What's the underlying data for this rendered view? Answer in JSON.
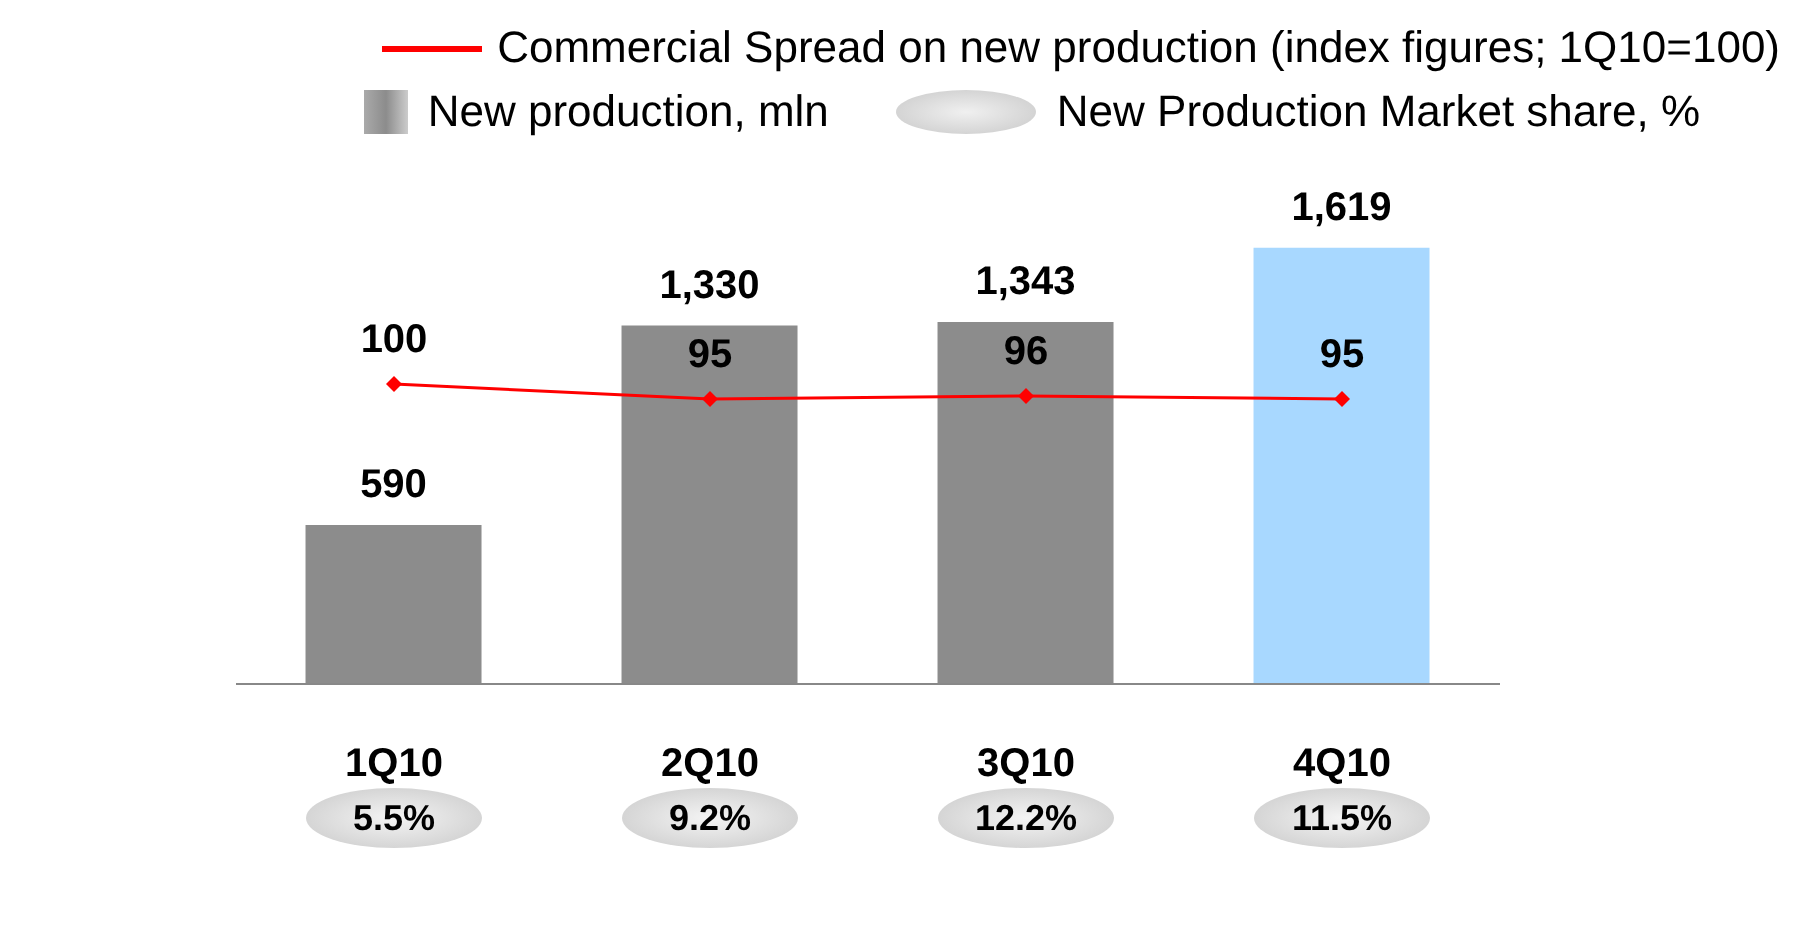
{
  "chart_data": {
    "type": "bar",
    "categories": [
      "1Q10",
      "2Q10",
      "3Q10",
      "4Q10"
    ],
    "series": [
      {
        "name": "Commercial Spread on new production (index figures; 1Q10=100)",
        "type": "line",
        "axis": "y2",
        "color": "#ff0000",
        "values": [
          100,
          95,
          96,
          95
        ]
      },
      {
        "name": "New production, mln",
        "color": "#8c8c8c",
        "colors": [
          "#8c8c8c",
          "#8c8c8c",
          "#8c8c8c",
          "#a8d8ff"
        ],
        "values": [
          590,
          1330,
          1343,
          1619
        ],
        "value_labels": [
          "590",
          "1,330",
          "1,343",
          "1,619"
        ]
      }
    ],
    "annotations": [
      "New Production Market share, %",
      "5.5%",
      "9.2%",
      "12.2%",
      "11.5%"
    ],
    "tick_labels": "x",
    "data_labels": true,
    "legend": "top right",
    "marker": "diamond",
    "grid": false
  }
}
